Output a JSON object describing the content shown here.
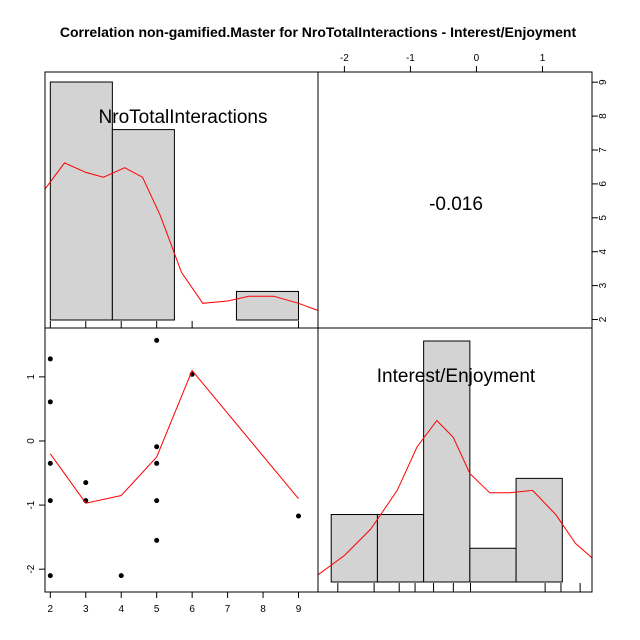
{
  "chart_data": {
    "type": "scatter",
    "title": "Correlation non-gamified.Master for NroTotalInteractions - Interest/Enjoyment",
    "variables": [
      "NroTotalInteractions",
      "Interest/Enjoyment"
    ],
    "correlation": "-0.016",
    "x_ticks": [
      "2",
      "3",
      "4",
      "5",
      "6",
      "7",
      "8",
      "9"
    ],
    "y_ticks": [
      "-2",
      "-1",
      "0",
      "1"
    ],
    "top_ticks": [
      "-2",
      "-1",
      "0",
      "1"
    ],
    "right_ticks": [
      "2",
      "3",
      "4",
      "5",
      "6",
      "7",
      "8",
      "9"
    ],
    "x_range": [
      1.85,
      9.55
    ],
    "y_range": [
      -2.2,
      1.7
    ],
    "scatter_points": [
      {
        "x": 2,
        "y": 1.28
      },
      {
        "x": 2,
        "y": 0.61
      },
      {
        "x": 2,
        "y": -0.35
      },
      {
        "x": 2,
        "y": -0.93
      },
      {
        "x": 2,
        "y": -2.1
      },
      {
        "x": 3,
        "y": -0.65
      },
      {
        "x": 3,
        "y": -0.93
      },
      {
        "x": 4,
        "y": -2.1
      },
      {
        "x": 5,
        "y": 1.57
      },
      {
        "x": 5,
        "y": -0.09
      },
      {
        "x": 5,
        "y": -0.35
      },
      {
        "x": 5,
        "y": -0.93
      },
      {
        "x": 5,
        "y": -1.55
      },
      {
        "x": 6,
        "y": 1.04
      },
      {
        "x": 9,
        "y": -1.17
      }
    ],
    "smoother_line": [
      {
        "x": 2,
        "y": -0.2
      },
      {
        "x": 3,
        "y": -0.97
      },
      {
        "x": 4,
        "y": -0.85
      },
      {
        "x": 5,
        "y": -0.25
      },
      {
        "x": 6,
        "y": 1.1
      },
      {
        "x": 9,
        "y": -0.9
      }
    ],
    "hist_x": {
      "range": [
        1.85,
        9.55
      ],
      "bins": [
        {
          "from": 2.0,
          "to": 3.75,
          "height": 1.0
        },
        {
          "from": 3.75,
          "to": 5.5,
          "height": 0.8
        },
        {
          "from": 5.5,
          "to": 7.25,
          "height": 0.0
        },
        {
          "from": 7.25,
          "to": 9.0,
          "height": 0.12
        }
      ],
      "density": [
        {
          "x": 1.85,
          "y": 0.55
        },
        {
          "x": 2.4,
          "y": 0.66
        },
        {
          "x": 3.0,
          "y": 0.62
        },
        {
          "x": 3.5,
          "y": 0.6
        },
        {
          "x": 4.1,
          "y": 0.64
        },
        {
          "x": 4.6,
          "y": 0.6
        },
        {
          "x": 5.1,
          "y": 0.44
        },
        {
          "x": 5.7,
          "y": 0.2
        },
        {
          "x": 6.3,
          "y": 0.07
        },
        {
          "x": 7.0,
          "y": 0.08
        },
        {
          "x": 7.6,
          "y": 0.1
        },
        {
          "x": 8.3,
          "y": 0.1
        },
        {
          "x": 9.0,
          "y": 0.07
        },
        {
          "x": 9.55,
          "y": 0.04
        }
      ],
      "rug": [
        2,
        3,
        4,
        5,
        6,
        9
      ]
    },
    "hist_y": {
      "range": [
        -2.4,
        1.75
      ],
      "bins": [
        {
          "from": -2.2,
          "to": -1.5,
          "height": 0.28
        },
        {
          "from": -1.5,
          "to": -0.8,
          "height": 0.28
        },
        {
          "from": -0.8,
          "to": -0.1,
          "height": 1.0
        },
        {
          "from": -0.1,
          "to": 0.6,
          "height": 0.14
        },
        {
          "from": 0.6,
          "to": 1.3,
          "height": 0.43
        }
      ],
      "density": [
        {
          "x": -2.4,
          "y": 0.03
        },
        {
          "x": -2.0,
          "y": 0.11
        },
        {
          "x": -1.6,
          "y": 0.22
        },
        {
          "x": -1.2,
          "y": 0.38
        },
        {
          "x": -0.9,
          "y": 0.56
        },
        {
          "x": -0.6,
          "y": 0.67
        },
        {
          "x": -0.35,
          "y": 0.6
        },
        {
          "x": -0.1,
          "y": 0.45
        },
        {
          "x": 0.2,
          "y": 0.37
        },
        {
          "x": 0.5,
          "y": 0.37
        },
        {
          "x": 0.85,
          "y": 0.38
        },
        {
          "x": 1.2,
          "y": 0.28
        },
        {
          "x": 1.5,
          "y": 0.16
        },
        {
          "x": 1.75,
          "y": 0.1
        }
      ],
      "rug": [
        -2.1,
        -1.55,
        -1.17,
        -0.93,
        -0.65,
        -0.35,
        -0.09,
        1.04,
        1.28,
        1.57
      ]
    },
    "colors": {
      "bar_fill": "#d3d3d3",
      "line": "#ff0000",
      "axis": "#000000"
    }
  }
}
